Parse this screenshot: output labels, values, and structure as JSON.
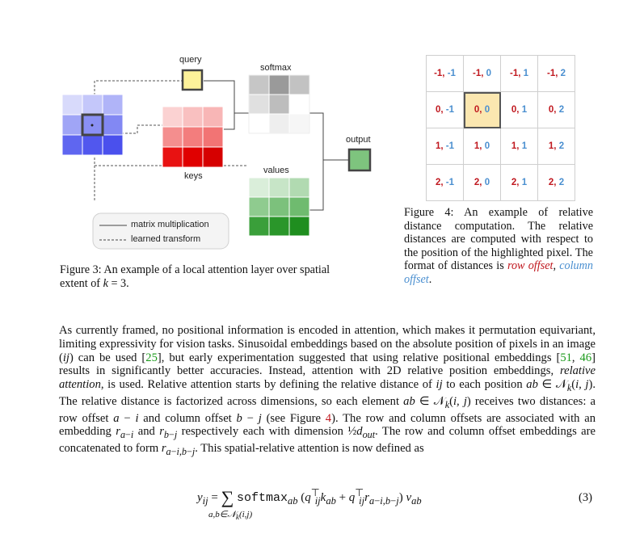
{
  "figure3": {
    "labels": {
      "query": "query",
      "softmax": "softmax",
      "keys": "keys",
      "values": "values",
      "output": "output"
    },
    "legend": {
      "solid": "matrix multiplication",
      "dashed": "learned transform"
    },
    "caption": "Figure 3: An example of a local attention layer over spatial extent of k = 3.",
    "colors": {
      "input_blue": "#5b63f0",
      "query_yellow": "#fdf29a",
      "keys_red": "#e60000",
      "values_green": "#2a9a2a",
      "output_green": "#7ec47e"
    }
  },
  "figure4": {
    "grid": [
      [
        [
          "-1",
          "-1"
        ],
        [
          "-1",
          "0"
        ],
        [
          "-1",
          "1"
        ],
        [
          "-1",
          "2"
        ]
      ],
      [
        [
          "0",
          "-1"
        ],
        [
          "0",
          "0"
        ],
        [
          "0",
          "1"
        ],
        [
          "0",
          "2"
        ]
      ],
      [
        [
          "1",
          "-1"
        ],
        [
          "1",
          "0"
        ],
        [
          "1",
          "1"
        ],
        [
          "1",
          "2"
        ]
      ],
      [
        [
          "2",
          "-1"
        ],
        [
          "2",
          "0"
        ],
        [
          "2",
          "1"
        ],
        [
          "2",
          "2"
        ]
      ]
    ],
    "caption_main": "Figure 4: An example of relative distance computation. The relative distances are computed with respect to the position of the highlighted pixel. The format of distances is ",
    "caption_row": "row offset",
    "caption_sep": ", ",
    "caption_col": "column offset",
    "caption_end": "."
  },
  "body": {
    "equation_number": "(3)"
  }
}
